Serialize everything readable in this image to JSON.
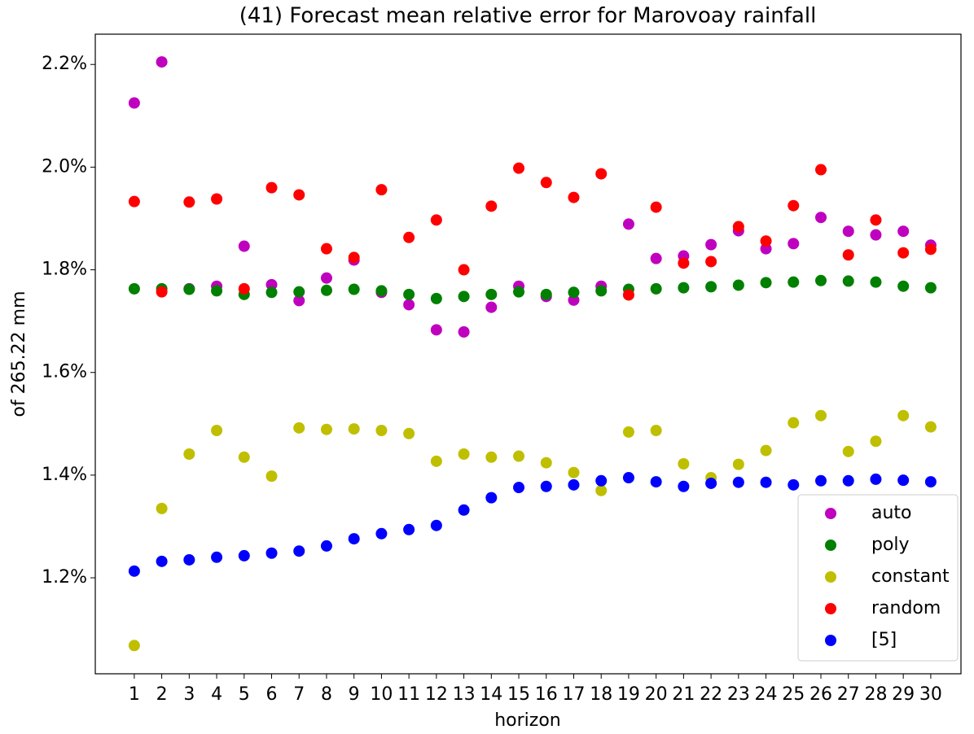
{
  "chart_data": {
    "type": "scatter",
    "title": "(41) Forecast mean relative error for Marovoay rainfall",
    "xlabel": "horizon",
    "ylabel": "of 265.22 mm",
    "x": [
      1,
      2,
      3,
      4,
      5,
      6,
      7,
      8,
      9,
      10,
      11,
      12,
      13,
      14,
      15,
      16,
      17,
      18,
      19,
      20,
      21,
      22,
      23,
      24,
      25,
      26,
      27,
      28,
      29,
      30
    ],
    "series": [
      {
        "name": "auto",
        "color": "#bf00bf",
        "values": [
          2.125,
          2.205,
          1.763,
          1.768,
          1.846,
          1.771,
          1.74,
          1.784,
          1.819,
          1.756,
          1.732,
          1.683,
          1.679,
          1.727,
          1.768,
          1.748,
          1.741,
          1.768,
          1.889,
          1.822,
          1.827,
          1.849,
          1.876,
          1.841,
          1.851,
          1.902,
          1.875,
          1.868,
          1.875,
          1.848
        ]
      },
      {
        "name": "poly",
        "color": "#008000",
        "values": [
          1.763,
          1.763,
          1.762,
          1.759,
          1.752,
          1.756,
          1.757,
          1.76,
          1.762,
          1.759,
          1.752,
          1.744,
          1.748,
          1.752,
          1.757,
          1.752,
          1.756,
          1.759,
          1.762,
          1.763,
          1.765,
          1.767,
          1.77,
          1.775,
          1.776,
          1.779,
          1.778,
          1.776,
          1.768,
          1.765
        ]
      },
      {
        "name": "constant",
        "color": "#bfbf00",
        "values": [
          1.068,
          1.335,
          1.441,
          1.487,
          1.435,
          1.398,
          1.492,
          1.489,
          1.49,
          1.487,
          1.481,
          1.427,
          1.441,
          1.435,
          1.437,
          1.424,
          1.405,
          1.37,
          1.484,
          1.487,
          1.422,
          1.395,
          1.421,
          1.448,
          1.502,
          1.516,
          1.446,
          1.466,
          1.516,
          1.494
        ]
      },
      {
        "name": "random",
        "color": "#ff0000",
        "values": [
          1.933,
          1.757,
          1.932,
          1.938,
          1.763,
          1.96,
          1.946,
          1.841,
          1.824,
          1.956,
          1.863,
          1.897,
          1.8,
          1.924,
          1.998,
          1.97,
          1.941,
          1.987,
          1.751,
          1.922,
          1.813,
          1.816,
          1.884,
          1.856,
          1.925,
          1.995,
          1.829,
          1.897,
          1.833,
          1.84
        ]
      },
      {
        "name": "[5]",
        "color": "#0000ff",
        "values": [
          1.213,
          1.232,
          1.235,
          1.24,
          1.243,
          1.248,
          1.252,
          1.262,
          1.276,
          1.286,
          1.294,
          1.302,
          1.332,
          1.356,
          1.376,
          1.378,
          1.381,
          1.389,
          1.395,
          1.387,
          1.378,
          1.384,
          1.386,
          1.386,
          1.381,
          1.389,
          1.389,
          1.392,
          1.39,
          1.387
        ]
      }
    ],
    "xlim": [
      -0.42,
      31.1
    ],
    "xticks": [
      1,
      2,
      3,
      4,
      5,
      6,
      7,
      8,
      9,
      10,
      11,
      12,
      13,
      14,
      15,
      16,
      17,
      18,
      19,
      20,
      21,
      22,
      23,
      24,
      25,
      26,
      27,
      28,
      29,
      30
    ],
    "ylim": [
      1.013,
      2.259
    ],
    "yticks": [
      {
        "value": 1.2,
        "label": "1.2%"
      },
      {
        "value": 1.4,
        "label": "1.4%"
      },
      {
        "value": 1.6,
        "label": "1.6%"
      },
      {
        "value": 1.8,
        "label": "1.8%"
      },
      {
        "value": 2.0,
        "label": "2.0%"
      },
      {
        "value": 2.2,
        "label": "2.2%"
      }
    ],
    "legend": "lower right"
  }
}
